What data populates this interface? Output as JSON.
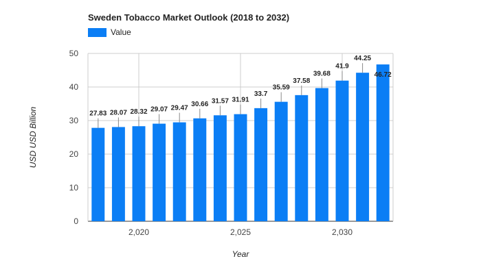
{
  "chart_data": {
    "type": "bar",
    "title": "Sweden Tobacco Market Outlook (2018 to 2032)",
    "xlabel": "Year",
    "ylabel": "USD USD Billion",
    "legend": [
      "Value"
    ],
    "legend_position": "top-left",
    "grid": true,
    "categories": [
      2018,
      2019,
      2020,
      2021,
      2022,
      2023,
      2024,
      2025,
      2026,
      2027,
      2028,
      2029,
      2030,
      2031,
      2032
    ],
    "values": [
      27.83,
      28.07,
      28.32,
      29.07,
      29.47,
      30.66,
      31.57,
      31.91,
      33.7,
      35.59,
      37.58,
      39.68,
      41.9,
      44.25,
      46.72
    ],
    "value_labels": [
      "27.83",
      "28.07",
      "28.32",
      "29.07",
      "29.47",
      "30.66",
      "31.57",
      "31.91",
      "33.7",
      "35.59",
      "37.58",
      "39.68",
      "41.9",
      "44.25",
      "46.72"
    ],
    "x_ticks": [
      2020,
      2025,
      2030
    ],
    "x_tick_labels": [
      "2,020",
      "2,025",
      "2,030"
    ],
    "y_ticks": [
      0,
      10,
      20,
      30,
      40,
      50
    ],
    "y_tick_labels": [
      "0",
      "10",
      "20",
      "30",
      "40",
      "50"
    ],
    "ylim": [
      0,
      50
    ],
    "bar_color": "#0b7ef5"
  }
}
